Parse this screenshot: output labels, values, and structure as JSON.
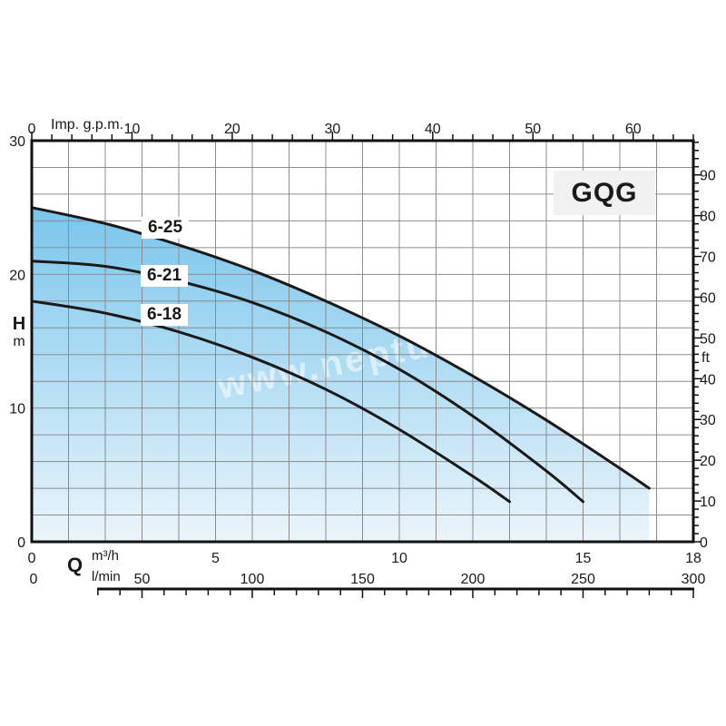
{
  "watermark": "www.neptun.cz",
  "colors": {
    "fill_top": "#79C5EC",
    "fill_bottom": "#EBF5FB",
    "grid": "#8C8C8C",
    "curve": "#1A1A1A",
    "border": "#111111",
    "text": "#1A1A1A",
    "badge_bg": "#F1F1F1",
    "watermark": "rgba(255,255,255,0.55)"
  },
  "chart_data": {
    "type": "line",
    "title": "GQG",
    "description": "Pump performance curves: head H (m / ft) versus flow Q (m³/h, l/min, Imp. g.p.m.)",
    "axes": {
      "top": {
        "label": "Imp. g.p.m.",
        "min": 0,
        "max": 66,
        "tick_step": 2,
        "labels": [
          0,
          10,
          20,
          30,
          40,
          50,
          60
        ]
      },
      "left": {
        "label": "H",
        "unit": "m",
        "min": 0,
        "max": 30,
        "labels": [
          0,
          10,
          20,
          30
        ]
      },
      "right": {
        "unit": "ft",
        "min": 0,
        "max": 98.4,
        "tick_step": 2,
        "labels": [
          0,
          10,
          20,
          30,
          40,
          50,
          60,
          70,
          80,
          90
        ]
      },
      "bottom": {
        "label": "Q",
        "unit_primary": "m³/h",
        "unit_secondary": "l/min",
        "m3h": {
          "min": 0,
          "max": 18,
          "labels": [
            0,
            5,
            10,
            15,
            18
          ]
        },
        "lmin": {
          "min": 0,
          "max": 300,
          "tick_step": 10,
          "major_step": 50,
          "labels": [
            0,
            50,
            100,
            150,
            200,
            250,
            300
          ]
        }
      }
    },
    "grid": {
      "x_step_m3h": 1,
      "y_step_m": 2
    },
    "series": [
      {
        "name": "6-25",
        "points": [
          [
            0,
            25
          ],
          [
            2,
            23.8
          ],
          [
            4,
            22.2
          ],
          [
            6,
            20.3
          ],
          [
            8,
            18.0
          ],
          [
            10,
            15.4
          ],
          [
            12,
            12.4
          ],
          [
            14,
            9.1
          ],
          [
            16,
            5.5
          ],
          [
            16.8,
            4.0
          ]
        ]
      },
      {
        "name": "6-21",
        "points": [
          [
            0,
            21
          ],
          [
            2,
            20.6
          ],
          [
            4,
            19.5
          ],
          [
            6,
            17.9
          ],
          [
            8,
            15.7
          ],
          [
            10,
            12.9
          ],
          [
            12,
            9.4
          ],
          [
            14,
            5.3
          ],
          [
            15,
            3.0
          ]
        ]
      },
      {
        "name": "6-18",
        "points": [
          [
            0,
            18
          ],
          [
            2,
            17.1
          ],
          [
            4,
            15.7
          ],
          [
            6,
            13.8
          ],
          [
            8,
            11.4
          ],
          [
            10,
            8.4
          ],
          [
            12,
            4.9
          ],
          [
            13,
            3.0
          ]
        ]
      }
    ],
    "fill": {
      "under_series": "6-25",
      "note": "area under top curve filled with vertical blue gradient, closed by vertical line at Q=16.8 m3/h"
    }
  }
}
